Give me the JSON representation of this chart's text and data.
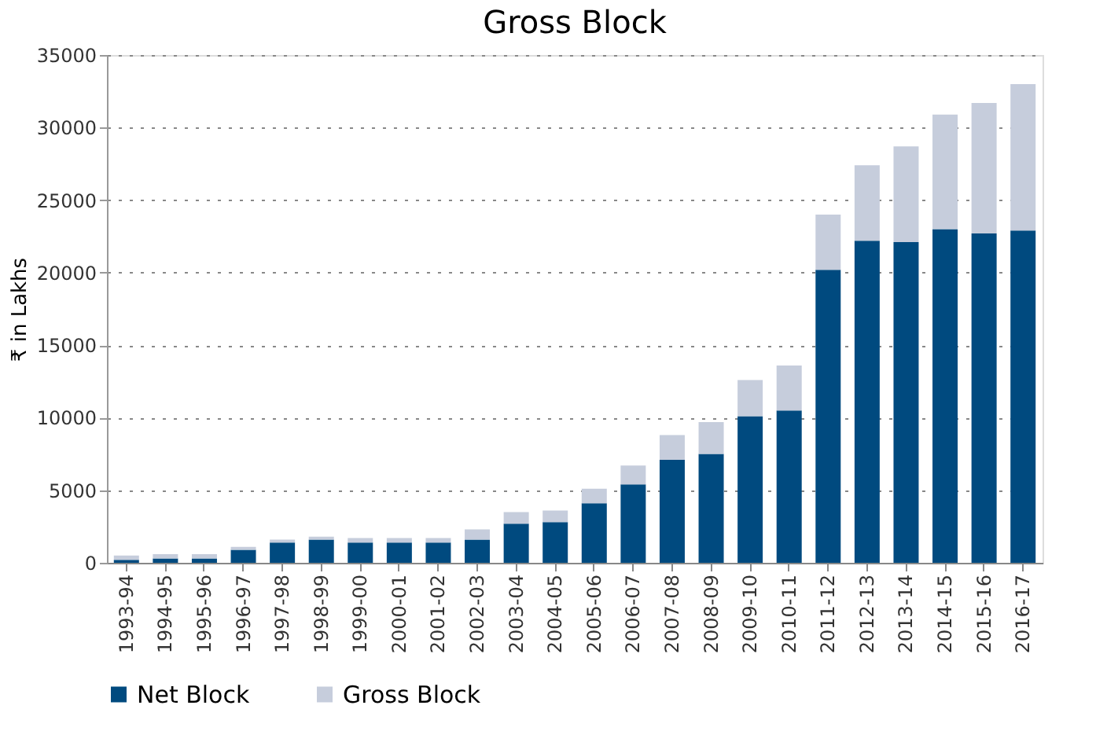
{
  "chart_data": {
    "type": "bar",
    "title": "Gross Block",
    "ylabel": "₹ in Lakhs",
    "stacked": true,
    "categories": [
      "1993-94",
      "1994-95",
      "1995-96",
      "1996-97",
      "1997-98",
      "1998-99",
      "1999-00",
      "2000-01",
      "2001-02",
      "2002-03",
      "2003-04",
      "2004-05",
      "2005-06",
      "2006-07",
      "2007-08",
      "2008-09",
      "2009-10",
      "2010-11",
      "2011-12",
      "2012-13",
      "2013-14",
      "2014-15",
      "2015-16",
      "2016-17"
    ],
    "series": [
      {
        "name": "Net Block",
        "color": "#004a7f",
        "values": [
          200,
          300,
          300,
          900,
          1400,
          1600,
          1400,
          1400,
          1400,
          1600,
          2700,
          2800,
          4100,
          5400,
          7100,
          7500,
          10100,
          10500,
          20200,
          22200,
          22100,
          23000,
          22700,
          22900
        ]
      },
      {
        "name": "Gross Block",
        "color": "#c6cddc",
        "values": [
          300,
          300,
          300,
          200,
          200,
          200,
          300,
          300,
          300,
          700,
          800,
          800,
          1000,
          1300,
          1700,
          2200,
          2500,
          3100,
          3800,
          5200,
          6600,
          7900,
          9000,
          10100
        ]
      }
    ],
    "ylim": [
      0,
      35000
    ],
    "yticks": [
      0,
      5000,
      10000,
      15000,
      20000,
      25000,
      30000,
      35000
    ],
    "grid": "y",
    "legend": "bottom"
  }
}
